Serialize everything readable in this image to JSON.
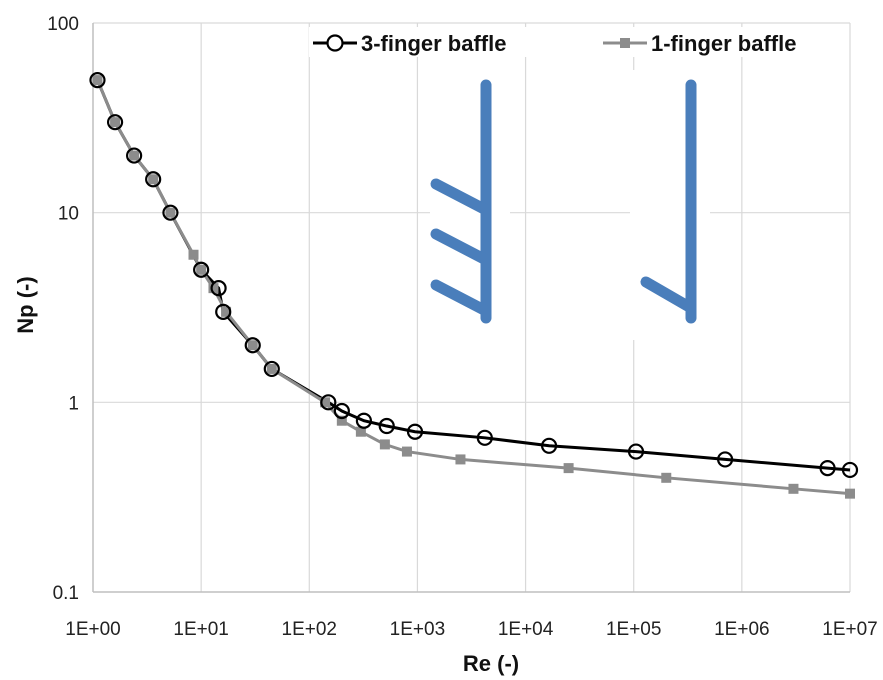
{
  "chart_data": {
    "type": "line",
    "xlabel": "Re (-)",
    "ylabel": "Np (-)",
    "x_scale": "log",
    "y_scale": "log",
    "xlim": [
      1,
      10000000
    ],
    "ylim": [
      0.1,
      100
    ],
    "x_tick_labels": [
      "1E+00",
      "1E+01",
      "1E+02",
      "1E+03",
      "1E+04",
      "1E+05",
      "1E+06",
      "1E+07"
    ],
    "y_tick_labels": [
      "0.1",
      "1",
      "10",
      "100"
    ],
    "grid": true,
    "legend_position": "top-right",
    "series": [
      {
        "name": "3-finger baffle",
        "color": "#000000",
        "marker": "open-circle",
        "points": [
          [
            1.1,
            50
          ],
          [
            1.6,
            30
          ],
          [
            2.4,
            20
          ],
          [
            3.6,
            15
          ],
          [
            5.2,
            10
          ],
          [
            10,
            5
          ],
          [
            14.5,
            4
          ],
          [
            16,
            3
          ],
          [
            30,
            2
          ],
          [
            45,
            1.5
          ],
          [
            150,
            1.0
          ],
          [
            200,
            0.9
          ],
          [
            320,
            0.8
          ],
          [
            520,
            0.75
          ],
          [
            950,
            0.7
          ],
          [
            4200,
            0.65
          ],
          [
            16500,
            0.59
          ],
          [
            105000,
            0.55
          ],
          [
            700000,
            0.5
          ],
          [
            6200000,
            0.45
          ],
          [
            10000000,
            0.44
          ]
        ]
      },
      {
        "name": "1-finger baffle",
        "color": "#8c8c8c",
        "marker": "filled-square",
        "points": [
          [
            1.1,
            50
          ],
          [
            1.6,
            30
          ],
          [
            2.4,
            20
          ],
          [
            3.6,
            15
          ],
          [
            5.2,
            10
          ],
          [
            8.5,
            6
          ],
          [
            10,
            5
          ],
          [
            13,
            4
          ],
          [
            17,
            3
          ],
          [
            30,
            2
          ],
          [
            45,
            1.5
          ],
          [
            140,
            1.0
          ],
          [
            200,
            0.8
          ],
          [
            300,
            0.7
          ],
          [
            500,
            0.6
          ],
          [
            800,
            0.55
          ],
          [
            2500,
            0.5
          ],
          [
            25000,
            0.45
          ],
          [
            200000,
            0.4
          ],
          [
            3000000,
            0.35
          ],
          [
            10000000,
            0.33
          ]
        ]
      }
    ]
  },
  "inset_icons": [
    {
      "name": "3-finger-baffle-icon",
      "color": "#4a7ebb",
      "fingers": 3
    },
    {
      "name": "1-finger-baffle-icon",
      "color": "#4a7ebb",
      "fingers": 1
    }
  ]
}
